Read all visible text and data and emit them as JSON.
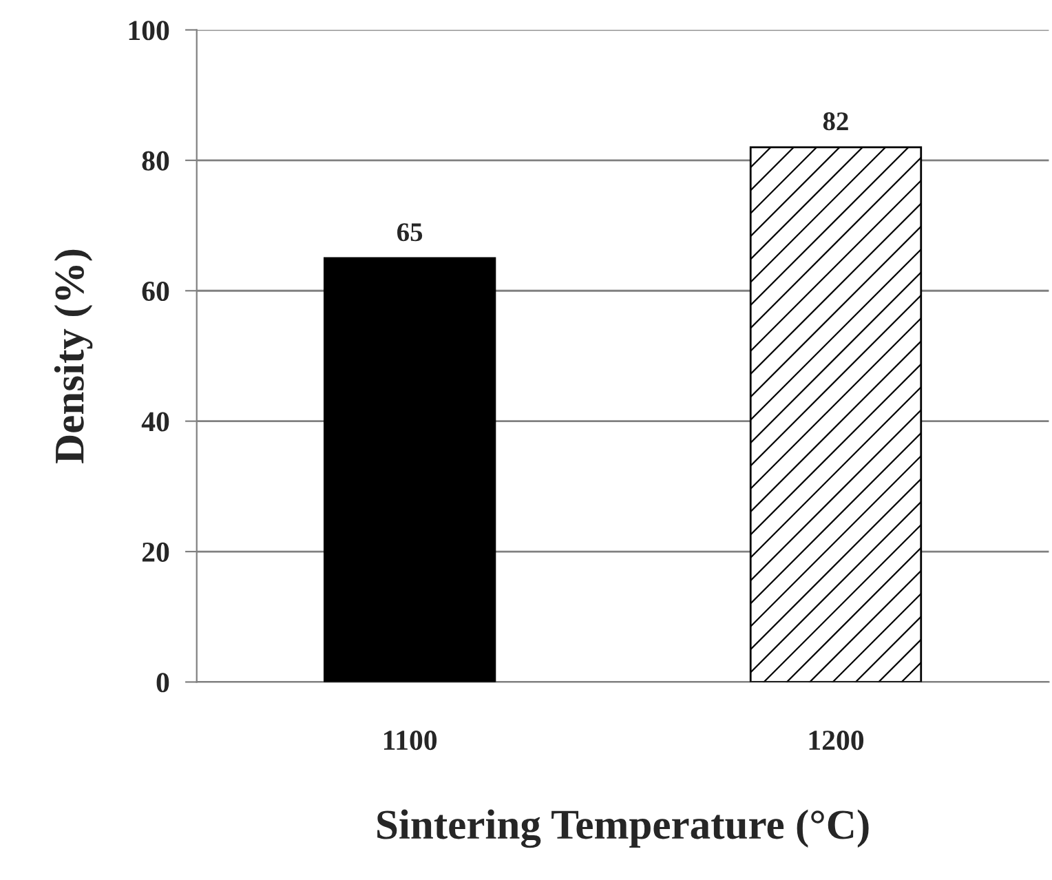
{
  "chart_data": {
    "type": "bar",
    "xlabel": "Sintering Temperature (°C)",
    "ylabel": "Density (%)",
    "categories": [
      "1100",
      "1200"
    ],
    "values": [
      65,
      82
    ],
    "colors": [
      "#000000",
      "#ffffff"
    ],
    "ylim": [
      0,
      100
    ],
    "yticks": [
      0,
      20,
      40,
      60,
      80,
      100
    ],
    "grid": "y",
    "data_labels": true
  }
}
